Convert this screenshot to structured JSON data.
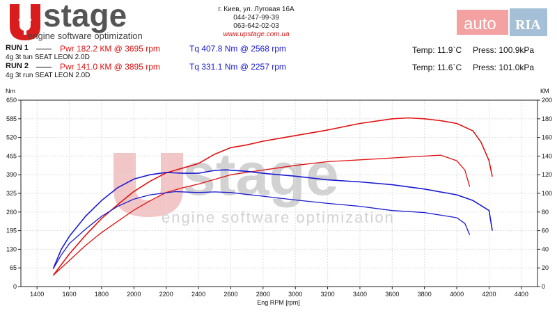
{
  "header": {
    "logo_main": "stage",
    "logo_sub": "engine software optimization",
    "address_lines": [
      "г. Киев, ул. Луговая 16А",
      "044-247-99-39",
      "063-642-02-03"
    ],
    "website": "www.upstage.com.ua",
    "autoria_text": "auto",
    "autoria_badge": "RIA"
  },
  "runs": [
    {
      "label": "RUN 1",
      "power": "Pwr  182.2 КМ @ 3695 rpm",
      "torque": "Tq  407.8 Nm @ 2568 rpm",
      "description": "4g 3t tun SEAT LEON 2.0D",
      "temp": "Temp: 11.9`C",
      "press": "Press: 100.9kPa"
    },
    {
      "label": "RUN 2",
      "power": "Pwr  141.0 КМ @ 3895 rpm",
      "torque": "Tq  331.1 Nm @ 2257 rpm",
      "description": "4g 3t run SEAT LEON 2.0D",
      "temp": "Temp: 11.6`C",
      "press": "Press: 101.0kPa"
    }
  ],
  "colors": {
    "power": "#e01010",
    "torque": "#1a1ad0",
    "grid": "#dddddd",
    "watermark_red": "#f2c6c6",
    "watermark_gray": "#d2d2d2"
  },
  "chart_data": {
    "type": "line",
    "xlabel": "Eng RPM [rpm]",
    "y_left_label": "Nm",
    "y_right_label": "КМ",
    "xlim": [
      1300,
      4500
    ],
    "x_ticks": [
      1400,
      1600,
      1800,
      2000,
      2200,
      2400,
      2600,
      2800,
      3000,
      3200,
      3400,
      3600,
      3800,
      4000,
      4200,
      4400
    ],
    "y_left_lim": [
      0,
      650
    ],
    "y_left_ticks": [
      0,
      65,
      130,
      195,
      260,
      325,
      390,
      455,
      520,
      585,
      650
    ],
    "y_right_lim": [
      0,
      200
    ],
    "y_right_ticks": [
      0,
      20,
      40,
      60,
      80,
      100,
      120,
      140,
      160,
      180,
      200
    ],
    "grid": true,
    "watermark": "UPstage engine software optimization",
    "series": [
      {
        "name": "Pwr RUN 1",
        "axis": "right",
        "color": "#e01010",
        "x": [
          1500,
          1600,
          1700,
          1800,
          1900,
          2000,
          2100,
          2200,
          2300,
          2400,
          2500,
          2600,
          2700,
          2800,
          3000,
          3200,
          3400,
          3600,
          3700,
          3800,
          3900,
          4000,
          4100,
          4150,
          4200,
          4220
        ],
        "y": [
          12,
          35,
          55,
          73,
          88,
          102,
          113,
          122,
          127,
          132,
          142,
          149,
          152,
          156,
          162,
          168,
          175,
          180,
          181,
          180,
          178,
          175,
          167,
          155,
          135,
          118
        ]
      },
      {
        "name": "Pwr RUN 2",
        "axis": "right",
        "color": "#e01010",
        "x": [
          1500,
          1600,
          1700,
          1800,
          1900,
          2000,
          2100,
          2200,
          2300,
          2400,
          2600,
          2800,
          3000,
          3200,
          3400,
          3600,
          3800,
          3900,
          4000,
          4050,
          4080
        ],
        "y": [
          12,
          28,
          44,
          58,
          70,
          82,
          92,
          101,
          106,
          110,
          120,
          125,
          130,
          134,
          136,
          138,
          140,
          141,
          135,
          125,
          107
        ]
      },
      {
        "name": "Tq RUN 1",
        "axis": "left",
        "color": "#1a1ad0",
        "x": [
          1500,
          1550,
          1600,
          1700,
          1800,
          1900,
          2000,
          2100,
          2200,
          2300,
          2400,
          2500,
          2568,
          2700,
          2800,
          3000,
          3200,
          3400,
          3600,
          3800,
          4000,
          4100,
          4200,
          4220
        ],
        "y": [
          62,
          130,
          175,
          245,
          300,
          345,
          375,
          390,
          398,
          395,
          395,
          405,
          407,
          402,
          395,
          385,
          372,
          365,
          355,
          340,
          320,
          300,
          265,
          195
        ]
      },
      {
        "name": "Tq RUN 2",
        "axis": "left",
        "color": "#1a1ad0",
        "x": [
          1500,
          1550,
          1600,
          1700,
          1800,
          1900,
          2000,
          2100,
          2257,
          2400,
          2500,
          2600,
          2800,
          3000,
          3200,
          3400,
          3600,
          3800,
          4000,
          4050,
          4080
        ],
        "y": [
          62,
          110,
          150,
          200,
          245,
          280,
          305,
          320,
          331,
          328,
          330,
          328,
          315,
          302,
          290,
          280,
          265,
          258,
          240,
          220,
          180
        ]
      }
    ]
  }
}
